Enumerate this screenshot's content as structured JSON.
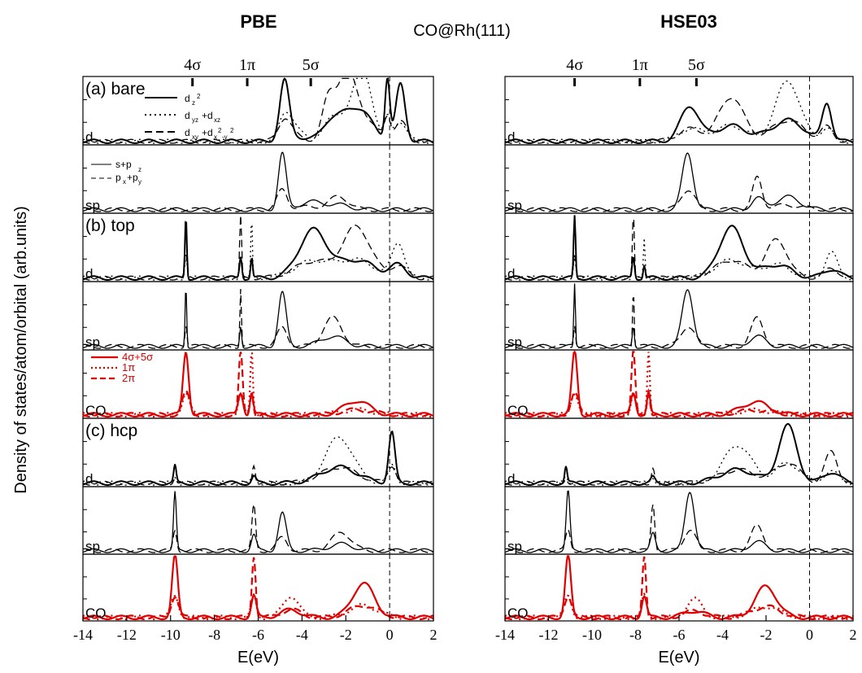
{
  "chart_data": {
    "type": "line",
    "title": "CO@Rh(111)",
    "xlabel": "E(eV)",
    "ylabel": "Density of states/atom/orbital (arb.units)",
    "xlim": [
      -14,
      2
    ],
    "xticks": [
      "-14",
      "-12",
      "-10",
      "-8",
      "-6",
      "-4",
      "-2",
      "0",
      "2"
    ],
    "fermi_level": 0,
    "orbital_markers": [
      "4σ",
      "1π",
      "5σ"
    ],
    "colors": {
      "metal": "#000000",
      "co": "#e00000"
    },
    "methods": [
      {
        "name": "PBE",
        "orbital_positions": [
          -9.0,
          -6.5,
          -3.6
        ]
      },
      {
        "name": "HSE03",
        "orbital_positions": [
          -10.8,
          -7.8,
          -5.2
        ]
      }
    ],
    "panels": [
      {
        "id": "bare-d",
        "tag": "(a) bare",
        "label": "d",
        "kind": "d"
      },
      {
        "id": "bare-sp",
        "label": "sp",
        "kind": "sp"
      },
      {
        "id": "top-d",
        "tag": "(b) top",
        "label": "d",
        "kind": "d"
      },
      {
        "id": "top-sp",
        "label": "sp",
        "kind": "sp"
      },
      {
        "id": "top-co",
        "label": "CO",
        "kind": "co"
      },
      {
        "id": "hcp-d",
        "tag": "(c) hcp",
        "label": "d",
        "kind": "d"
      },
      {
        "id": "hcp-sp",
        "label": "sp",
        "kind": "sp"
      },
      {
        "id": "hcp-co",
        "label": "CO",
        "kind": "co"
      }
    ],
    "legend_d": [
      "d",
      "z",
      "2",
      "d",
      "yz",
      "+d",
      "xz",
      "d",
      "xy",
      "+d",
      "x",
      "2",
      "-y",
      "2"
    ],
    "legend_sp": [
      "s+p",
      "z",
      "p",
      "x",
      "+p",
      "y"
    ],
    "legend_co": [
      "4σ+5σ",
      "1π",
      "2π"
    ],
    "series_styles": {
      "d": [
        {
          "name": "d_z2",
          "dash": "solid"
        },
        {
          "name": "d_yz+d_xz",
          "dash": "dotted"
        },
        {
          "name": "d_xy+d_x2-y2",
          "dash": "dashed"
        }
      ],
      "sp": [
        {
          "name": "s+p_z",
          "dash": "solid"
        },
        {
          "name": "p_x+p_y",
          "dash": "dashed"
        }
      ],
      "co": [
        {
          "name": "4σ+5σ",
          "dash": "solid"
        },
        {
          "name": "1π",
          "dash": "dotted"
        },
        {
          "name": "2π",
          "dash": "dashed"
        }
      ]
    },
    "peaks": {
      "PBE": {
        "bare-d": [
          {
            "center": -0.1,
            "height": 0.95,
            "width": 0.15
          },
          {
            "center": -2.8,
            "height": 0.6,
            "width": 0.4
          },
          {
            "center": -4.4,
            "height": 0.25,
            "width": 0.5
          },
          {
            "center": -4.8,
            "height": 0.9,
            "width": 0.3
          },
          {
            "center": -2.0,
            "height": 1.0,
            "width": 0.6
          },
          {
            "center": -1.2,
            "height": 1.0,
            "width": 0.6
          },
          {
            "center": 0.5,
            "height": 0.9,
            "width": 0.3
          }
        ],
        "bare-sp": [
          {
            "center": -4.9,
            "height": 0.88,
            "width": 0.25
          },
          {
            "center": -2.3,
            "height": 0.2,
            "width": 0.6
          },
          {
            "center": -3.6,
            "height": 0.12,
            "width": 0.8
          }
        ],
        "top-d": [
          {
            "center": -9.3,
            "height": 1.0,
            "width": 0.06
          },
          {
            "center": -6.8,
            "height": 1.0,
            "width": 0.06
          },
          {
            "center": -6.3,
            "height": 0.95,
            "width": 0.05
          },
          {
            "center": -3.5,
            "height": 0.75,
            "width": 0.9
          },
          {
            "center": -1.5,
            "height": 0.8,
            "width": 0.9
          },
          {
            "center": 0.4,
            "height": 0.55,
            "width": 0.4
          }
        ],
        "top-sp": [
          {
            "center": -9.3,
            "height": 1.0,
            "width": 0.05
          },
          {
            "center": -6.8,
            "height": 0.92,
            "width": 0.05
          },
          {
            "center": -4.9,
            "height": 0.85,
            "width": 0.25
          },
          {
            "center": -2.6,
            "height": 0.45,
            "width": 0.6
          }
        ],
        "top-co": [
          {
            "center": -9.3,
            "height": 1.0,
            "width": 0.18
          },
          {
            "center": -6.8,
            "height": 1.0,
            "width": 0.12
          },
          {
            "center": -6.3,
            "height": 1.0,
            "width": 0.08
          },
          {
            "center": -1.5,
            "height": 0.22,
            "width": 0.8
          }
        ],
        "hcp-d": [
          {
            "center": -9.8,
            "height": 0.27,
            "width": 0.08
          },
          {
            "center": -6.2,
            "height": 0.3,
            "width": 0.1
          },
          {
            "center": -2.3,
            "height": 0.72,
            "width": 0.9
          },
          {
            "center": 0.1,
            "height": 0.8,
            "width": 0.2
          }
        ],
        "hcp-sp": [
          {
            "center": -9.8,
            "height": 0.92,
            "width": 0.09
          },
          {
            "center": -6.2,
            "height": 0.72,
            "width": 0.12
          },
          {
            "center": -4.9,
            "height": 0.6,
            "width": 0.25
          },
          {
            "center": -2.2,
            "height": 0.3,
            "width": 0.6
          }
        ],
        "hcp-co": [
          {
            "center": -9.8,
            "height": 1.0,
            "width": 0.18
          },
          {
            "center": -6.2,
            "height": 1.0,
            "width": 0.12
          },
          {
            "center": -4.5,
            "height": 0.35,
            "width": 0.5
          },
          {
            "center": -1.2,
            "height": 0.55,
            "width": 0.7
          }
        ]
      },
      "HSE03": {
        "bare-d": [
          {
            "center": -5.5,
            "height": 0.55,
            "width": 0.6
          },
          {
            "center": -3.6,
            "height": 0.7,
            "width": 0.8
          },
          {
            "center": -1.0,
            "height": 0.95,
            "width": 0.8
          },
          {
            "center": 0.8,
            "height": 0.6,
            "width": 0.3
          }
        ],
        "bare-sp": [
          {
            "center": -5.6,
            "height": 0.9,
            "width": 0.35
          },
          {
            "center": -2.4,
            "height": 0.5,
            "width": 0.3
          },
          {
            "center": -1.0,
            "height": 0.2,
            "width": 0.8
          }
        ],
        "top-d": [
          {
            "center": -10.8,
            "height": 1.0,
            "width": 0.06
          },
          {
            "center": -8.1,
            "height": 1.0,
            "width": 0.06
          },
          {
            "center": -7.6,
            "height": 0.6,
            "width": 0.05
          },
          {
            "center": -3.6,
            "height": 0.8,
            "width": 0.8
          },
          {
            "center": -1.5,
            "height": 0.6,
            "width": 0.7
          },
          {
            "center": 1.0,
            "height": 0.4,
            "width": 0.4
          }
        ],
        "top-sp": [
          {
            "center": -10.8,
            "height": 1.0,
            "width": 0.05
          },
          {
            "center": -8.1,
            "height": 0.92,
            "width": 0.05
          },
          {
            "center": -5.6,
            "height": 0.9,
            "width": 0.35
          },
          {
            "center": -2.4,
            "height": 0.45,
            "width": 0.4
          }
        ],
        "top-co": [
          {
            "center": -10.8,
            "height": 1.0,
            "width": 0.18
          },
          {
            "center": -8.1,
            "height": 1.0,
            "width": 0.12
          },
          {
            "center": -7.4,
            "height": 1.0,
            "width": 0.08
          },
          {
            "center": -2.5,
            "height": 0.2,
            "width": 0.9
          }
        ],
        "hcp-d": [
          {
            "center": -11.2,
            "height": 0.25,
            "width": 0.08
          },
          {
            "center": -7.2,
            "height": 0.25,
            "width": 0.1
          },
          {
            "center": -3.3,
            "height": 0.6,
            "width": 0.9
          },
          {
            "center": -1.0,
            "height": 0.9,
            "width": 0.6
          },
          {
            "center": 1.0,
            "height": 0.5,
            "width": 0.4
          }
        ],
        "hcp-sp": [
          {
            "center": -11.1,
            "height": 0.95,
            "width": 0.12
          },
          {
            "center": -7.2,
            "height": 0.75,
            "width": 0.12
          },
          {
            "center": -5.5,
            "height": 0.95,
            "width": 0.3
          },
          {
            "center": -2.4,
            "height": 0.4,
            "width": 0.4
          }
        ],
        "hcp-co": [
          {
            "center": -11.1,
            "height": 1.0,
            "width": 0.18
          },
          {
            "center": -7.6,
            "height": 1.0,
            "width": 0.12
          },
          {
            "center": -5.3,
            "height": 0.3,
            "width": 0.5
          },
          {
            "center": -2.0,
            "height": 0.5,
            "width": 0.7
          }
        ]
      }
    }
  }
}
